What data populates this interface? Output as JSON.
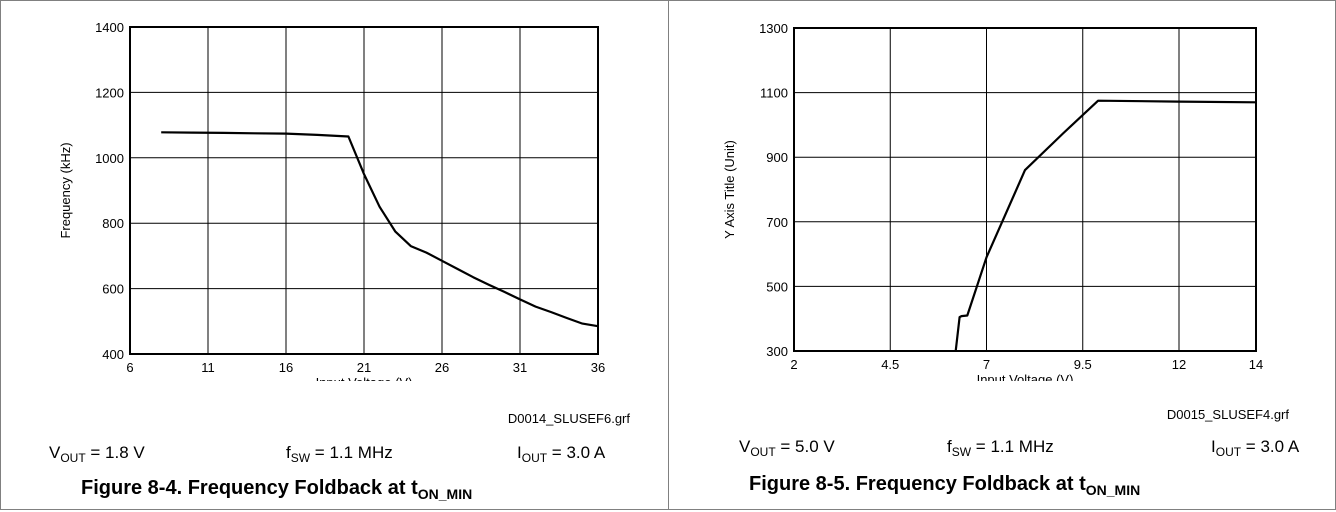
{
  "chart_data": [
    {
      "type": "line",
      "xlabel": "Input Voltage (V)",
      "ylabel": "Frequency (kHz)",
      "xlim": [
        6,
        36
      ],
      "ylim": [
        400,
        1400
      ],
      "xticks": [
        6,
        11,
        16,
        21,
        26,
        31,
        36
      ],
      "yticks": [
        400,
        600,
        800,
        1000,
        1200,
        1400
      ],
      "grid": true,
      "series": [
        {
          "x": [
            8,
            10,
            12,
            14,
            16,
            18,
            20,
            21,
            22,
            23,
            24,
            25,
            26,
            27,
            28,
            29,
            30,
            31,
            32,
            33,
            34,
            35,
            36
          ],
          "y": [
            1078,
            1077,
            1076,
            1075,
            1074,
            1070,
            1065,
            950,
            850,
            775,
            730,
            710,
            685,
            660,
            635,
            612,
            590,
            567,
            545,
            528,
            510,
            493,
            485
          ]
        }
      ],
      "file_label": "D0014_SLUSEF6.grf",
      "conditions": [
        {
          "main": "V",
          "sub": "OUT",
          "rest": " = 1.8 V"
        },
        {
          "main": "f",
          "sub": "SW",
          "rest": " = 1.1 MHz"
        },
        {
          "main": "I",
          "sub": "OUT",
          "rest": " = 3.0 A"
        }
      ],
      "caption": {
        "text": "Figure 8-4. Frequency Foldback at t",
        "sub": "ON_MIN"
      }
    },
    {
      "type": "line",
      "xlabel": "Input Voltage (V)",
      "ylabel": "Y Axis Title (Unit)",
      "xlim": [
        2,
        14
      ],
      "ylim": [
        300,
        1300
      ],
      "xticks": [
        2,
        4.5,
        7,
        9.5,
        12,
        14
      ],
      "yticks": [
        300,
        500,
        700,
        900,
        1100,
        1300
      ],
      "grid": true,
      "series": [
        {
          "x": [
            6.2,
            6.3,
            6.35,
            6.5,
            7.0,
            8.0,
            9.0,
            9.9,
            12.0,
            14.0
          ],
          "y": [
            300,
            405,
            408,
            410,
            590,
            860,
            975,
            1075,
            1072,
            1070
          ]
        }
      ],
      "file_label": "D0015_SLUSEF4.grf",
      "conditions": [
        {
          "main": "V",
          "sub": "OUT",
          "rest": " = 5.0 V"
        },
        {
          "main": "f",
          "sub": "SW",
          "rest": " = 1.1 MHz"
        },
        {
          "main": "I",
          "sub": "OUT",
          "rest": " = 3.0 A"
        }
      ],
      "caption": {
        "text": "Figure 8-5. Frequency Foldback at t",
        "sub": "ON_MIN"
      }
    }
  ]
}
